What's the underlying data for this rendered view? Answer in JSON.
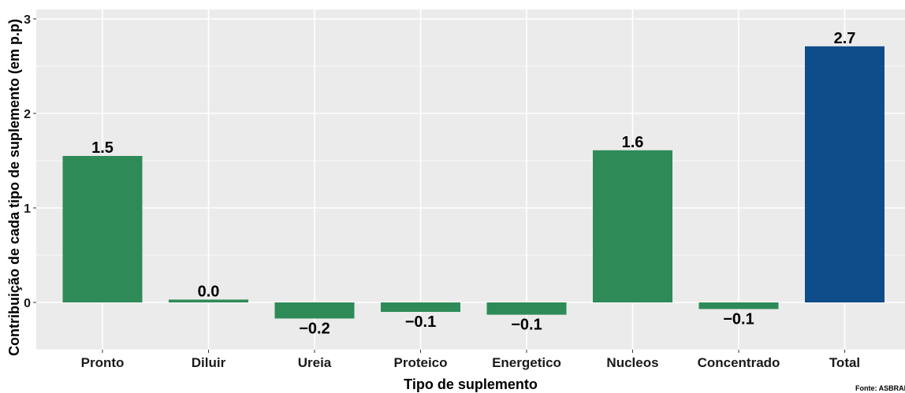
{
  "chart_data": {
    "type": "bar",
    "title": "",
    "xlabel": "Tipo de suplemento",
    "ylabel": "Contribuição de cada tipo de suplemento (em p.p)",
    "categories": [
      "Pronto",
      "Diluir",
      "Ureia",
      "Proteico",
      "Energetico",
      "Nucleos",
      "Concentrado",
      "Total"
    ],
    "values": [
      1.55,
      0.03,
      -0.17,
      -0.1,
      -0.13,
      1.61,
      -0.07,
      2.71
    ],
    "data_labels": [
      "1.5",
      "0.0",
      "−0.2",
      "−0.1",
      "−0.1",
      "1.6",
      "−0.1",
      "2.7"
    ],
    "yticks": [
      0,
      1,
      2,
      3
    ],
    "ytick_labels": [
      "0",
      "1",
      "2",
      "3"
    ],
    "ylim": [
      -0.5,
      3.1
    ],
    "grid": true,
    "legend": "none",
    "colors": {
      "bar": "#2e8b57",
      "total_bar": "#0f4c8a",
      "panel": "#ebebeb",
      "grid": "#ffffff"
    }
  },
  "source_note": "Fonte: ASBRAM"
}
